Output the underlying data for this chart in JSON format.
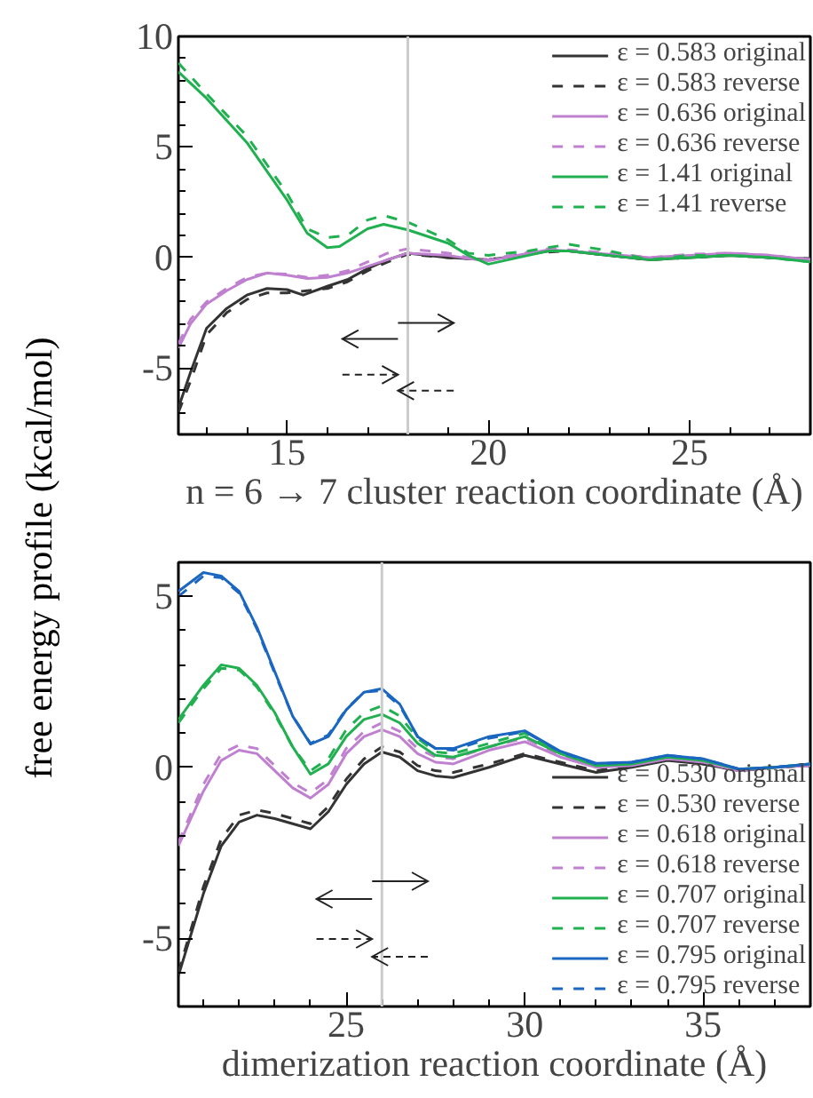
{
  "chart_data": [
    {
      "type": "line",
      "xlabel": "n = 6 → 7 cluster reaction coordinate (Å)",
      "ylabel": "free energy profile (kcal/mol)",
      "xlim": [
        12.3,
        28
      ],
      "ylim": [
        -8,
        10
      ],
      "xticks": [
        15,
        20,
        25
      ],
      "yticks": [
        -5,
        0,
        5,
        10
      ],
      "grid": false,
      "legend": "top right",
      "ref_lines": [
        {
          "axis": "x",
          "value": 18,
          "color": "#cccccc"
        }
      ],
      "series": [
        {
          "name": "ε = 0.583 original",
          "color": "#333333",
          "line_style": "solid",
          "x": [
            12.3,
            12.6,
            13,
            13.5,
            14,
            14.5,
            15,
            15.4,
            16,
            16.5,
            17,
            17.5,
            18,
            19,
            20,
            21,
            21.5,
            22,
            23,
            24,
            25,
            26,
            27,
            28
          ],
          "values": [
            -6.8,
            -5.2,
            -3.2,
            -2.3,
            -1.7,
            -1.4,
            -1.45,
            -1.7,
            -1.3,
            -1.0,
            -0.5,
            -0.1,
            0.2,
            0.0,
            -0.1,
            0.15,
            0.3,
            0.3,
            0.1,
            -0.1,
            0.0,
            0.1,
            0.0,
            -0.05
          ]
        },
        {
          "name": "ε = 0.583 reverse",
          "color": "#333333",
          "line_style": "dashed",
          "x": [
            12.3,
            12.6,
            13,
            13.5,
            14,
            14.5,
            15,
            15.5,
            16,
            16.5,
            17,
            17.5,
            18,
            19,
            20,
            21,
            22,
            23,
            24,
            25,
            26,
            27,
            28
          ],
          "values": [
            -7.0,
            -5.6,
            -3.5,
            -2.5,
            -1.9,
            -1.6,
            -1.6,
            -1.5,
            -1.4,
            -1.1,
            -0.6,
            -0.2,
            0.15,
            0.0,
            -0.1,
            0.2,
            0.3,
            0.1,
            -0.1,
            0.0,
            0.1,
            0.0,
            -0.05
          ]
        },
        {
          "name": "ε = 0.636 original",
          "color": "#c080d0",
          "line_style": "solid",
          "x": [
            12.3,
            12.6,
            13,
            13.5,
            14,
            14.5,
            15,
            15.5,
            16,
            16.5,
            17,
            17.5,
            18,
            19,
            19.5,
            20,
            21,
            21.5,
            22,
            23,
            24,
            25,
            26,
            27,
            28
          ],
          "values": [
            -4.1,
            -3.0,
            -2.1,
            -1.5,
            -1.0,
            -0.7,
            -0.8,
            -0.95,
            -0.9,
            -0.7,
            -0.4,
            -0.1,
            0.2,
            0.1,
            -0.05,
            -0.15,
            0.2,
            0.35,
            0.3,
            0.15,
            0.0,
            0.1,
            0.2,
            0.1,
            -0.1
          ]
        },
        {
          "name": "ε = 0.636 reverse",
          "color": "#c080d0",
          "line_style": "dashed",
          "x": [
            12.3,
            12.6,
            13,
            13.5,
            14,
            14.5,
            15,
            15.5,
            16,
            16.5,
            17,
            17.5,
            18,
            19,
            19.5,
            20,
            21,
            21.5,
            22,
            23,
            24,
            25,
            26,
            27,
            28
          ],
          "values": [
            -3.9,
            -2.8,
            -2.0,
            -1.4,
            -0.9,
            -0.7,
            -0.75,
            -0.9,
            -0.8,
            -0.6,
            -0.2,
            0.2,
            0.4,
            0.2,
            0.0,
            -0.1,
            0.25,
            0.4,
            0.35,
            0.2,
            0.0,
            0.15,
            0.2,
            0.1,
            -0.1
          ]
        },
        {
          "name": "ε = 1.41 original",
          "color": "#20b050",
          "line_style": "solid",
          "x": [
            12.3,
            13,
            14,
            15,
            15.5,
            16,
            16.3,
            17,
            17.4,
            18,
            19,
            19.5,
            20,
            20.5,
            21,
            21.5,
            22,
            23,
            24,
            25,
            26,
            27,
            28
          ],
          "values": [
            8.4,
            7.2,
            5.2,
            2.6,
            1.1,
            0.45,
            0.5,
            1.3,
            1.5,
            1.25,
            0.65,
            0.1,
            -0.3,
            -0.1,
            0.1,
            0.3,
            0.3,
            0.1,
            -0.1,
            0.0,
            0.1,
            0.0,
            -0.2
          ]
        },
        {
          "name": "ε = 1.41 reverse",
          "color": "#20b050",
          "line_style": "dashed",
          "x": [
            12.3,
            13,
            14,
            15,
            15.5,
            16,
            16.5,
            17,
            17.4,
            18,
            19,
            19.5,
            20,
            21,
            22,
            23,
            24,
            25,
            26,
            27,
            28
          ],
          "values": [
            8.8,
            7.4,
            5.5,
            2.9,
            1.3,
            0.9,
            1.0,
            1.7,
            1.9,
            1.6,
            0.8,
            0.2,
            0.1,
            0.3,
            0.6,
            0.3,
            -0.1,
            0.1,
            0.1,
            0.0,
            -0.2
          ]
        }
      ]
    },
    {
      "type": "line",
      "xlabel": "dimerization reaction coordinate (Å)",
      "xlim": [
        20.3,
        38
      ],
      "ylim": [
        -7,
        6
      ],
      "xticks": [
        25,
        30,
        35
      ],
      "yticks": [
        -5,
        0,
        5
      ],
      "grid": false,
      "legend": "bottom right",
      "ref_lines": [
        {
          "axis": "x",
          "value": 26,
          "color": "#cccccc"
        }
      ],
      "series": [
        {
          "name": "ε = 0.530 original",
          "color": "#333333",
          "line_style": "solid",
          "x": [
            20.3,
            21,
            21.5,
            22,
            22.5,
            23,
            23.5,
            24,
            24.5,
            25,
            25.5,
            26,
            26.5,
            27,
            27.5,
            28,
            29,
            30,
            31,
            32,
            33,
            34,
            35,
            36,
            37,
            38
          ],
          "values": [
            -6.1,
            -3.7,
            -2.3,
            -1.6,
            -1.4,
            -1.5,
            -1.65,
            -1.8,
            -1.3,
            -0.5,
            0.1,
            0.45,
            0.3,
            -0.1,
            -0.25,
            -0.3,
            0.0,
            0.35,
            0.1,
            -0.15,
            0.0,
            0.2,
            0.1,
            -0.1,
            0.0,
            0.05
          ]
        },
        {
          "name": "ε = 0.530 reverse",
          "color": "#333333",
          "line_style": "dashed",
          "x": [
            20.3,
            21,
            21.5,
            22,
            22.5,
            23,
            23.5,
            24,
            24.5,
            25,
            25.5,
            26,
            26.5,
            27,
            27.5,
            28,
            29,
            30,
            31,
            32,
            33,
            34,
            35,
            36,
            37,
            38
          ],
          "values": [
            -6.0,
            -3.5,
            -2.1,
            -1.4,
            -1.25,
            -1.35,
            -1.5,
            -1.65,
            -1.15,
            -0.35,
            0.25,
            0.6,
            0.45,
            0.05,
            -0.1,
            -0.15,
            0.1,
            0.4,
            0.15,
            -0.1,
            0.05,
            0.25,
            0.1,
            -0.1,
            0.0,
            0.05
          ]
        },
        {
          "name": "ε = 0.618 original",
          "color": "#c080d0",
          "line_style": "solid",
          "x": [
            20.3,
            21,
            21.5,
            22,
            22.5,
            23,
            23.5,
            24,
            24.5,
            25,
            25.5,
            26,
            26.5,
            27,
            27.5,
            28,
            29,
            30,
            31,
            32,
            33,
            34,
            35,
            36,
            37,
            38
          ],
          "values": [
            -2.3,
            -0.7,
            0.2,
            0.5,
            0.4,
            -0.1,
            -0.6,
            -0.9,
            -0.5,
            0.4,
            0.9,
            1.1,
            0.9,
            0.4,
            0.15,
            0.1,
            0.5,
            0.75,
            0.3,
            0.0,
            0.05,
            0.25,
            0.15,
            -0.1,
            0.0,
            0.05
          ]
        },
        {
          "name": "ε = 0.618 reverse",
          "color": "#c080d0",
          "line_style": "dashed",
          "x": [
            20.3,
            21,
            21.5,
            22,
            22.5,
            23,
            23.5,
            24,
            24.5,
            25,
            25.5,
            26,
            26.5,
            27,
            27.5,
            28,
            29,
            30,
            31,
            32,
            33,
            34,
            35,
            36,
            37,
            38
          ],
          "values": [
            -2.2,
            -0.5,
            0.4,
            0.65,
            0.55,
            0.05,
            -0.45,
            -0.75,
            -0.35,
            0.55,
            1.05,
            1.3,
            1.05,
            0.55,
            0.3,
            0.25,
            0.6,
            0.85,
            0.35,
            0.05,
            0.1,
            0.3,
            0.15,
            -0.1,
            0.0,
            0.05
          ]
        },
        {
          "name": "ε = 0.707 original",
          "color": "#20b050",
          "line_style": "solid",
          "x": [
            20.3,
            21,
            21.5,
            22,
            22.5,
            23,
            23.5,
            24,
            24.5,
            25,
            25.5,
            26,
            26.5,
            27,
            27.5,
            28,
            29,
            30,
            31,
            32,
            33,
            34,
            35,
            36,
            37,
            38
          ],
          "values": [
            1.4,
            2.4,
            3.0,
            2.9,
            2.4,
            1.6,
            0.6,
            -0.2,
            0.1,
            0.9,
            1.4,
            1.55,
            1.3,
            0.7,
            0.35,
            0.3,
            0.6,
            0.9,
            0.4,
            0.05,
            0.1,
            0.3,
            0.2,
            -0.05,
            0.0,
            0.1
          ]
        },
        {
          "name": "ε = 0.707 reverse",
          "color": "#20b050",
          "line_style": "dashed",
          "x": [
            20.3,
            21,
            21.5,
            22,
            22.5,
            23,
            23.5,
            24,
            24.5,
            25,
            25.5,
            26,
            26.5,
            27,
            27.5,
            28,
            29,
            30,
            31,
            32,
            33,
            34,
            35,
            36,
            37,
            38
          ],
          "values": [
            1.3,
            2.3,
            2.9,
            2.85,
            2.35,
            1.55,
            0.6,
            -0.1,
            0.25,
            1.1,
            1.6,
            1.8,
            1.5,
            0.85,
            0.45,
            0.4,
            0.7,
            1.0,
            0.45,
            0.05,
            0.1,
            0.35,
            0.2,
            -0.05,
            0.0,
            0.1
          ]
        },
        {
          "name": "ε = 0.795 original",
          "color": "#1a66c0",
          "line_style": "solid",
          "x": [
            20.3,
            21,
            21.5,
            22,
            22.5,
            23,
            23.5,
            24,
            24.5,
            25,
            25.5,
            26,
            26.5,
            27,
            27.5,
            28,
            29,
            30,
            31,
            32,
            33,
            34,
            35,
            36,
            37,
            38
          ],
          "values": [
            5.15,
            5.7,
            5.6,
            5.15,
            4.1,
            2.8,
            1.5,
            0.68,
            0.9,
            1.68,
            2.2,
            2.3,
            1.85,
            0.9,
            0.55,
            0.55,
            0.9,
            1.07,
            0.47,
            0.12,
            0.15,
            0.35,
            0.25,
            -0.05,
            0.0,
            0.1
          ]
        },
        {
          "name": "ε = 0.795 reverse",
          "color": "#1a66c0",
          "line_style": "dashed",
          "x": [
            20.3,
            21,
            21.5,
            22,
            22.5,
            23,
            23.5,
            24,
            24.5,
            25,
            25.5,
            26,
            26.5,
            27,
            27.5,
            28,
            29,
            30,
            31,
            32,
            33,
            34,
            35,
            36,
            37,
            38
          ],
          "values": [
            5.0,
            5.6,
            5.55,
            5.1,
            4.05,
            2.75,
            1.5,
            0.7,
            0.95,
            1.7,
            2.2,
            2.25,
            1.8,
            0.9,
            0.55,
            0.5,
            0.85,
            1.05,
            0.45,
            0.1,
            0.15,
            0.35,
            0.25,
            -0.05,
            0.0,
            0.1
          ]
        }
      ]
    }
  ]
}
